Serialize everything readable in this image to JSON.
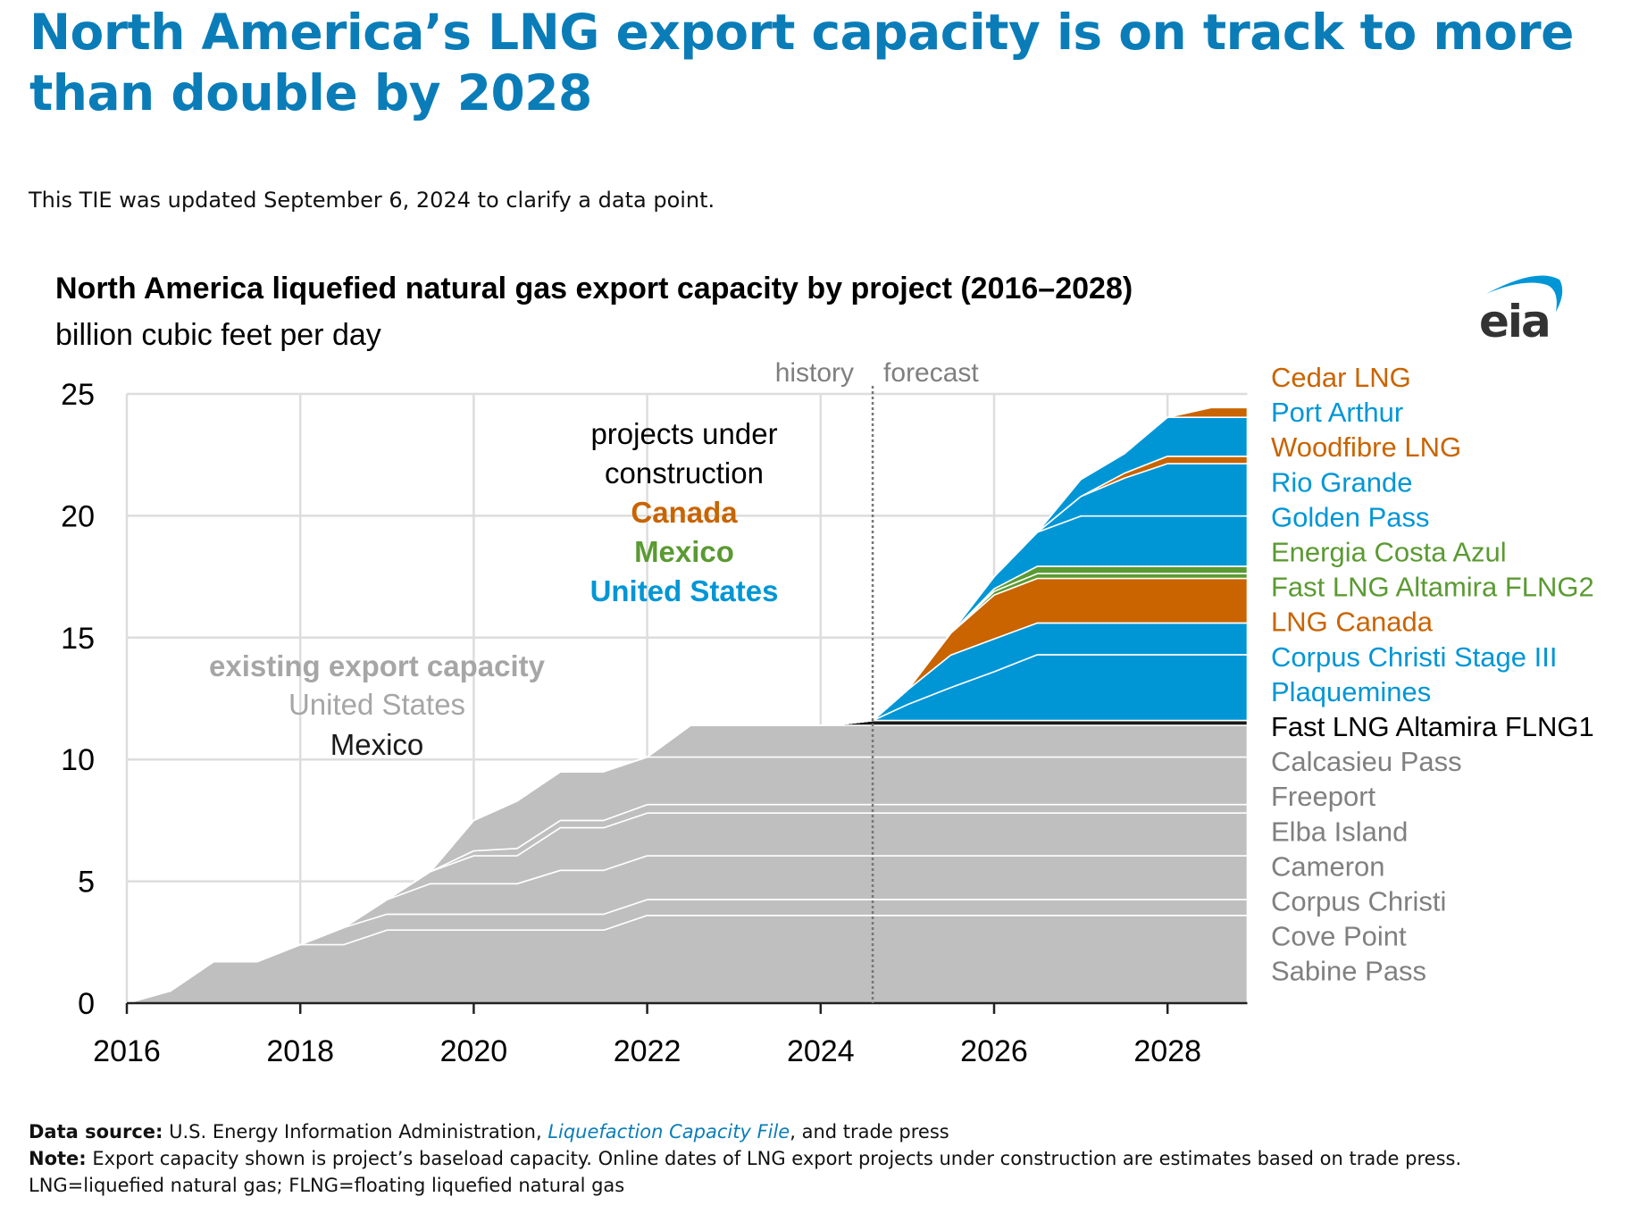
{
  "headline": "North America’s LNG export capacity is on track to more than double by 2028",
  "update_note": "This TIE was updated September 6, 2024 to clarify a data point.",
  "logo_text": "eia",
  "colors": {
    "title": "#0a7db8",
    "existing": "#bfbfbf",
    "united_states": "#0096d6",
    "canada": "#c96400",
    "mexico": "#5b9a32",
    "mexico_existing": "#1a1a1a",
    "grid": "#dddddd"
  },
  "chart_data": {
    "type": "area",
    "stacked": true,
    "title": "North America liquefied natural gas export capacity by project (2016–2028)",
    "ylabel": "billion cubic feet per day",
    "xlim": [
      2016,
      2028.92
    ],
    "ylim": [
      0,
      25
    ],
    "xticks": [
      "2016",
      "2018",
      "2020",
      "2022",
      "2024",
      "2026",
      "2028"
    ],
    "yticks": [
      "0",
      "5",
      "10",
      "15",
      "20",
      "25"
    ],
    "grid": true,
    "history_forecast_divider": 2024.6,
    "divider_labels": {
      "history": "history",
      "forecast": "forecast"
    },
    "annotations": {
      "construction_line1": "projects under",
      "construction_line2": "construction",
      "construction_canada": "Canada",
      "construction_mexico": "Mexico",
      "construction_us": "United States",
      "existing_title": "existing export capacity",
      "existing_us": "United States",
      "existing_mexico": "Mexico"
    },
    "legend_placement": "right",
    "x": [
      2016,
      2016.5,
      2017,
      2017.5,
      2018,
      2018.5,
      2019,
      2019.5,
      2020,
      2020.5,
      2021,
      2021.5,
      2022,
      2022.5,
      2023,
      2023.5,
      2024,
      2024.25,
      2024.6,
      2025,
      2025.5,
      2026,
      2026.5,
      2027,
      2027.5,
      2028,
      2028.5,
      2028.92
    ],
    "series": [
      {
        "name": "Sabine Pass",
        "group": "existing",
        "values": [
          0,
          0.5,
          1.7,
          1.7,
          2.4,
          2.4,
          3.0,
          3.0,
          3.0,
          3.0,
          3.0,
          3.0,
          3.6,
          3.6,
          3.6,
          3.6,
          3.6,
          3.6,
          3.6,
          3.6,
          3.6,
          3.6,
          3.6,
          3.6,
          3.6,
          3.6,
          3.6,
          3.6
        ]
      },
      {
        "name": "Cove Point",
        "group": "existing",
        "values": [
          0,
          0,
          0,
          0,
          0,
          0.7,
          0.65,
          0.65,
          0.65,
          0.65,
          0.65,
          0.65,
          0.65,
          0.65,
          0.65,
          0.65,
          0.65,
          0.65,
          0.65,
          0.65,
          0.65,
          0.65,
          0.65,
          0.65,
          0.65,
          0.65,
          0.65,
          0.65
        ]
      },
      {
        "name": "Corpus Christi",
        "group": "existing",
        "values": [
          0,
          0,
          0,
          0,
          0,
          0,
          0.6,
          1.25,
          1.25,
          1.25,
          1.8,
          1.8,
          1.8,
          1.8,
          1.8,
          1.8,
          1.8,
          1.8,
          1.8,
          1.8,
          1.8,
          1.8,
          1.8,
          1.8,
          1.8,
          1.8,
          1.8,
          1.8
        ]
      },
      {
        "name": "Cameron",
        "group": "existing",
        "values": [
          0,
          0,
          0,
          0,
          0,
          0,
          0,
          0.5,
          1.15,
          1.15,
          1.75,
          1.75,
          1.75,
          1.75,
          1.75,
          1.75,
          1.75,
          1.75,
          1.75,
          1.75,
          1.75,
          1.75,
          1.75,
          1.75,
          1.75,
          1.75,
          1.75,
          1.75
        ]
      },
      {
        "name": "Elba Island",
        "group": "existing",
        "values": [
          0,
          0,
          0,
          0,
          0,
          0,
          0,
          0,
          0.2,
          0.3,
          0.3,
          0.3,
          0.35,
          0.35,
          0.35,
          0.35,
          0.35,
          0.35,
          0.35,
          0.35,
          0.35,
          0.35,
          0.35,
          0.35,
          0.35,
          0.35,
          0.35,
          0.35
        ]
      },
      {
        "name": "Freeport",
        "group": "existing",
        "values": [
          0,
          0,
          0,
          0,
          0,
          0,
          0,
          0,
          1.25,
          1.95,
          2.0,
          2.0,
          1.95,
          1.95,
          1.95,
          1.95,
          1.95,
          1.95,
          1.95,
          1.95,
          1.95,
          1.95,
          1.95,
          1.95,
          1.95,
          1.95,
          1.95,
          1.95
        ]
      },
      {
        "name": "Calcasieu Pass",
        "group": "existing",
        "values": [
          0,
          0,
          0,
          0,
          0,
          0,
          0,
          0,
          0,
          0,
          0,
          0,
          0,
          1.3,
          1.3,
          1.3,
          1.3,
          1.3,
          1.3,
          1.3,
          1.3,
          1.3,
          1.3,
          1.3,
          1.3,
          1.3,
          1.3,
          1.3
        ]
      },
      {
        "name": "Fast LNG Altamira FLNG1",
        "group": "mexico_existing",
        "values": [
          0,
          0,
          0,
          0,
          0,
          0,
          0,
          0,
          0,
          0,
          0,
          0,
          0,
          0,
          0,
          0,
          0,
          0.05,
          0.2,
          0.2,
          0.2,
          0.2,
          0.2,
          0.2,
          0.2,
          0.2,
          0.2,
          0.2
        ]
      },
      {
        "name": "Plaquemines",
        "group": "united_states",
        "values": [
          0,
          0,
          0,
          0,
          0,
          0,
          0,
          0,
          0,
          0,
          0,
          0,
          0,
          0,
          0,
          0,
          0,
          0,
          0,
          0.65,
          1.35,
          2.0,
          2.7,
          2.7,
          2.7,
          2.7,
          2.7,
          2.7
        ]
      },
      {
        "name": "Corpus Christi Stage III",
        "group": "united_states",
        "values": [
          0,
          0,
          0,
          0,
          0,
          0,
          0,
          0,
          0,
          0,
          0,
          0,
          0,
          0,
          0,
          0,
          0,
          0,
          0,
          0.6,
          1.33,
          1.35,
          1.3,
          1.3,
          1.3,
          1.3,
          1.3,
          1.3
        ]
      },
      {
        "name": "LNG Canada",
        "group": "canada",
        "values": [
          0,
          0,
          0,
          0,
          0,
          0,
          0,
          0,
          0,
          0,
          0,
          0,
          0,
          0,
          0,
          0,
          0,
          0,
          0,
          0,
          0.9,
          1.8,
          1.83,
          1.83,
          1.83,
          1.83,
          1.83,
          1.83
        ]
      },
      {
        "name": "Fast LNG Altamira FLNG2",
        "group": "mexico",
        "values": [
          0,
          0,
          0,
          0,
          0,
          0,
          0,
          0,
          0,
          0,
          0,
          0,
          0,
          0,
          0,
          0,
          0,
          0,
          0,
          0,
          0,
          0.15,
          0.2,
          0.2,
          0.2,
          0.2,
          0.2,
          0.2
        ]
      },
      {
        "name": "Energia Costa Azul",
        "group": "mexico",
        "values": [
          0,
          0,
          0,
          0,
          0,
          0,
          0,
          0,
          0,
          0,
          0,
          0,
          0,
          0,
          0,
          0,
          0,
          0,
          0,
          0,
          0,
          0.1,
          0.3,
          0.3,
          0.3,
          0.3,
          0.3,
          0.3
        ]
      },
      {
        "name": "Golden Pass",
        "group": "united_states",
        "values": [
          0,
          0,
          0,
          0,
          0,
          0,
          0,
          0,
          0,
          0,
          0,
          0,
          0,
          0,
          0,
          0,
          0,
          0,
          0,
          0,
          0,
          0.5,
          1.4,
          2.06,
          2.06,
          2.06,
          2.06,
          2.06
        ]
      },
      {
        "name": "Rio Grande",
        "group": "united_states",
        "values": [
          0,
          0,
          0,
          0,
          0,
          0,
          0,
          0,
          0,
          0,
          0,
          0,
          0,
          0,
          0,
          0,
          0,
          0,
          0,
          0,
          0,
          0,
          0,
          0.8,
          1.55,
          2.15,
          2.15,
          2.15
        ]
      },
      {
        "name": "Woodfibre LNG",
        "group": "canada",
        "values": [
          0,
          0,
          0,
          0,
          0,
          0,
          0,
          0,
          0,
          0,
          0,
          0,
          0,
          0,
          0,
          0,
          0,
          0,
          0,
          0,
          0,
          0,
          0,
          0,
          0.2,
          0.3,
          0.3,
          0.3
        ]
      },
      {
        "name": "Port Arthur",
        "group": "united_states",
        "values": [
          0,
          0,
          0,
          0,
          0,
          0,
          0,
          0,
          0,
          0,
          0,
          0,
          0,
          0,
          0,
          0,
          0,
          0,
          0,
          0,
          0,
          0,
          0,
          0.7,
          0.8,
          1.6,
          1.6,
          1.6
        ]
      },
      {
        "name": "Cedar LNG",
        "group": "canada",
        "values": [
          0,
          0,
          0,
          0,
          0,
          0,
          0,
          0,
          0,
          0,
          0,
          0,
          0,
          0,
          0,
          0,
          0,
          0,
          0,
          0,
          0,
          0,
          0,
          0,
          0,
          0,
          0.4,
          0.4
        ]
      }
    ]
  },
  "footer": {
    "source_label": "Data source:",
    "source_text_1": " U.S. Energy Information Administration, ",
    "source_link": "Liquefaction Capacity File",
    "source_text_2": ", and trade press",
    "note_label": "Note:",
    "note_text": " Export capacity shown is project’s baseload capacity. Online dates of LNG export projects under construction are estimates based on trade press.",
    "abbrev": "LNG=liquefied natural gas; FLNG=floating liquefied natural gas"
  }
}
